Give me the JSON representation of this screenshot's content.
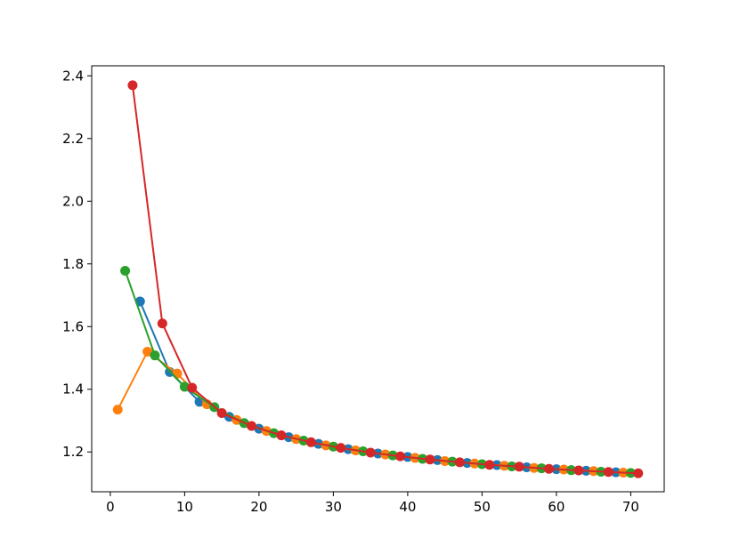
{
  "chart_data": {
    "type": "line",
    "xlim": [
      -2.5,
      74.5
    ],
    "xticks": [
      0,
      10,
      20,
      30,
      40,
      50,
      60,
      70
    ],
    "ylim": [
      1.073,
      2.432
    ],
    "yticks": [
      1.2,
      1.4,
      1.6,
      1.8,
      {
        "value": 2,
        "label": "2.0"
      },
      2.2,
      2.4
    ],
    "series": [
      {
        "color": "#1f77b4",
        "x": [
          4,
          8,
          12,
          16,
          20,
          24,
          28,
          32,
          36,
          40,
          44,
          48,
          52,
          56,
          60,
          64,
          68
        ],
        "values": [
          1.68,
          1.455,
          1.36,
          1.312,
          1.274,
          1.247,
          1.226,
          1.209,
          1.195,
          1.184,
          1.174,
          1.165,
          1.158,
          1.151,
          1.145,
          1.14,
          1.135
        ]
      },
      {
        "color": "#ff7f0e",
        "x": [
          1,
          5,
          9,
          13,
          17,
          21,
          25,
          29,
          33,
          37,
          41,
          45,
          49,
          53,
          57,
          61,
          65,
          69
        ],
        "values": [
          1.335,
          1.52,
          1.45,
          1.352,
          1.302,
          1.267,
          1.241,
          1.221,
          1.205,
          1.192,
          1.181,
          1.171,
          1.163,
          1.156,
          1.149,
          1.144,
          1.139,
          1.134
        ]
      },
      {
        "color": "#2ca02c",
        "x": [
          2,
          6,
          10,
          14,
          18,
          22,
          26,
          30,
          34,
          38,
          42,
          46,
          50,
          54,
          58,
          62,
          66,
          70
        ],
        "values": [
          1.778,
          1.508,
          1.408,
          1.343,
          1.292,
          1.26,
          1.236,
          1.217,
          1.202,
          1.189,
          1.178,
          1.169,
          1.161,
          1.154,
          1.148,
          1.142,
          1.137,
          1.133
        ]
      },
      {
        "color": "#d62728",
        "x": [
          3,
          7,
          11,
          15,
          19,
          23,
          27,
          31,
          35,
          39,
          43,
          47,
          51,
          55,
          59,
          63,
          67,
          71
        ],
        "values": [
          2.37,
          1.61,
          1.405,
          1.324,
          1.283,
          1.253,
          1.231,
          1.213,
          1.198,
          1.186,
          1.176,
          1.167,
          1.159,
          1.153,
          1.146,
          1.141,
          1.136,
          1.132
        ]
      }
    ]
  }
}
